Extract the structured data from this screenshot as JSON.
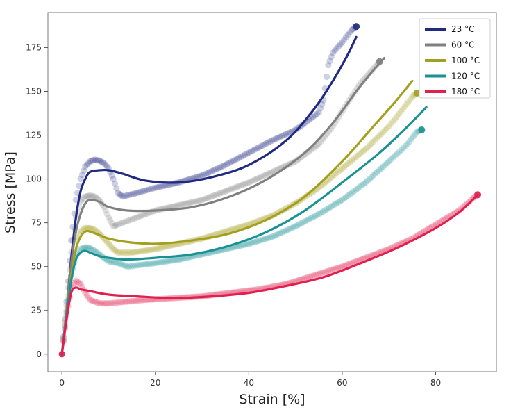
{
  "chart_data": {
    "type": "line",
    "title": "",
    "xlabel": "Strain [%]",
    "ylabel": "Stress [MPa]",
    "xlim": [
      -3,
      93
    ],
    "ylim": [
      -10,
      195
    ],
    "xticks": [
      0,
      20,
      40,
      60,
      80
    ],
    "yticks": [
      0,
      25,
      50,
      75,
      100,
      125,
      150,
      175
    ],
    "grid": false,
    "legend_position": "top-right",
    "series": [
      {
        "name": "23 °C",
        "color": "#1f2a80",
        "model": [
          [
            0,
            0
          ],
          [
            1,
            25
          ],
          [
            2,
            55
          ],
          [
            3,
            78
          ],
          [
            4,
            93
          ],
          [
            5,
            100
          ],
          [
            6,
            104
          ],
          [
            8,
            105
          ],
          [
            10,
            105
          ],
          [
            13,
            103
          ],
          [
            18,
            99
          ],
          [
            25,
            98
          ],
          [
            32,
            101
          ],
          [
            40,
            108
          ],
          [
            48,
            122
          ],
          [
            54,
            140
          ],
          [
            58,
            156
          ],
          [
            61,
            170
          ],
          [
            63,
            181
          ]
        ],
        "data": [
          [
            0,
            0
          ],
          [
            1,
            30
          ],
          [
            2,
            65
          ],
          [
            3,
            88
          ],
          [
            4,
            100
          ],
          [
            5,
            107
          ],
          [
            6,
            110
          ],
          [
            7,
            111
          ],
          [
            8,
            110.5
          ],
          [
            9,
            109
          ],
          [
            10,
            106
          ],
          [
            11,
            100
          ],
          [
            12,
            92
          ],
          [
            13,
            90
          ],
          [
            16,
            92
          ],
          [
            20,
            95
          ],
          [
            25,
            98
          ],
          [
            30,
            102
          ],
          [
            35,
            108
          ],
          [
            40,
            115
          ],
          [
            45,
            122
          ],
          [
            50,
            128
          ],
          [
            55,
            138
          ],
          [
            56,
            145
          ],
          [
            57,
            165
          ],
          [
            58,
            172
          ],
          [
            60,
            178
          ],
          [
            62,
            185
          ],
          [
            63,
            187
          ]
        ]
      },
      {
        "name": "60 °C",
        "color": "#808080",
        "model": [
          [
            0,
            0
          ],
          [
            1,
            25
          ],
          [
            2,
            52
          ],
          [
            3,
            70
          ],
          [
            4,
            80
          ],
          [
            5,
            86
          ],
          [
            6,
            88
          ],
          [
            8,
            87
          ],
          [
            10,
            84
          ],
          [
            14,
            82
          ],
          [
            20,
            82
          ],
          [
            28,
            84
          ],
          [
            36,
            90
          ],
          [
            44,
            100
          ],
          [
            52,
            115
          ],
          [
            58,
            132
          ],
          [
            63,
            150
          ],
          [
            66,
            160
          ],
          [
            69,
            169
          ]
        ],
        "data": [
          [
            0,
            0
          ],
          [
            1,
            28
          ],
          [
            2,
            58
          ],
          [
            3,
            78
          ],
          [
            4,
            87
          ],
          [
            5,
            90
          ],
          [
            6,
            90.5
          ],
          [
            7,
            90
          ],
          [
            8,
            88
          ],
          [
            9,
            84
          ],
          [
            10,
            78
          ],
          [
            11,
            73
          ],
          [
            12,
            74
          ],
          [
            16,
            78
          ],
          [
            20,
            82
          ],
          [
            25,
            85
          ],
          [
            30,
            88
          ],
          [
            35,
            93
          ],
          [
            40,
            98
          ],
          [
            45,
            104
          ],
          [
            50,
            110
          ],
          [
            53,
            116
          ],
          [
            55,
            120
          ],
          [
            58,
            130
          ],
          [
            61,
            143
          ],
          [
            64,
            155
          ],
          [
            67,
            164
          ],
          [
            68,
            167
          ]
        ]
      },
      {
        "name": "100 °C",
        "color": "#a3a01f",
        "model": [
          [
            0,
            0
          ],
          [
            1,
            22
          ],
          [
            2,
            45
          ],
          [
            3,
            60
          ],
          [
            4,
            67
          ],
          [
            5,
            70
          ],
          [
            6,
            70
          ],
          [
            8,
            68
          ],
          [
            10,
            66
          ],
          [
            14,
            64
          ],
          [
            20,
            63
          ],
          [
            28,
            65
          ],
          [
            36,
            69
          ],
          [
            44,
            77
          ],
          [
            52,
            90
          ],
          [
            60,
            110
          ],
          [
            66,
            128
          ],
          [
            71,
            143
          ],
          [
            75,
            156
          ]
        ],
        "data": [
          [
            0,
            0
          ],
          [
            1,
            25
          ],
          [
            2,
            50
          ],
          [
            3,
            65
          ],
          [
            4,
            70
          ],
          [
            5,
            72
          ],
          [
            6,
            72
          ],
          [
            7,
            71
          ],
          [
            8,
            69
          ],
          [
            9,
            66
          ],
          [
            10,
            63
          ],
          [
            11,
            60
          ],
          [
            12,
            58
          ],
          [
            15,
            58
          ],
          [
            20,
            60
          ],
          [
            25,
            63
          ],
          [
            30,
            66
          ],
          [
            35,
            70
          ],
          [
            40,
            74
          ],
          [
            45,
            79
          ],
          [
            50,
            86
          ],
          [
            55,
            95
          ],
          [
            60,
            106
          ],
          [
            65,
            117
          ],
          [
            70,
            130
          ],
          [
            73,
            140
          ],
          [
            75,
            147
          ],
          [
            76,
            149
          ]
        ]
      },
      {
        "name": "120 °C",
        "color": "#1a9294",
        "model": [
          [
            0,
            0
          ],
          [
            1,
            22
          ],
          [
            2,
            42
          ],
          [
            3,
            54
          ],
          [
            4,
            58
          ],
          [
            5,
            59
          ],
          [
            6,
            58
          ],
          [
            8,
            56
          ],
          [
            10,
            55
          ],
          [
            14,
            54
          ],
          [
            20,
            55
          ],
          [
            28,
            57
          ],
          [
            36,
            62
          ],
          [
            44,
            70
          ],
          [
            52,
            82
          ],
          [
            60,
            98
          ],
          [
            68,
            115
          ],
          [
            74,
            130
          ],
          [
            78,
            141
          ]
        ],
        "data": [
          [
            0,
            0
          ],
          [
            1,
            24
          ],
          [
            2,
            45
          ],
          [
            3,
            56
          ],
          [
            4,
            60
          ],
          [
            5,
            61
          ],
          [
            6,
            60.5
          ],
          [
            7,
            59
          ],
          [
            8,
            57
          ],
          [
            9,
            55
          ],
          [
            10,
            53
          ],
          [
            12,
            52
          ],
          [
            14,
            50
          ],
          [
            20,
            52
          ],
          [
            25,
            54
          ],
          [
            30,
            57
          ],
          [
            35,
            60
          ],
          [
            40,
            63
          ],
          [
            45,
            67
          ],
          [
            50,
            73
          ],
          [
            55,
            80
          ],
          [
            60,
            88
          ],
          [
            65,
            98
          ],
          [
            70,
            110
          ],
          [
            74,
            120
          ],
          [
            76,
            127
          ],
          [
            77,
            128
          ]
        ]
      },
      {
        "name": "180 °C",
        "color": "#e0204f",
        "model": [
          [
            0,
            0
          ],
          [
            1,
            20
          ],
          [
            2,
            35
          ],
          [
            3,
            38
          ],
          [
            4,
            37
          ],
          [
            6,
            36
          ],
          [
            10,
            34
          ],
          [
            16,
            33
          ],
          [
            24,
            32
          ],
          [
            32,
            33
          ],
          [
            40,
            35
          ],
          [
            48,
            39
          ],
          [
            56,
            44
          ],
          [
            64,
            52
          ],
          [
            72,
            61
          ],
          [
            80,
            72
          ],
          [
            85,
            81
          ],
          [
            89,
            91
          ]
        ],
        "data": [
          [
            0,
            0
          ],
          [
            1,
            22
          ],
          [
            2,
            38
          ],
          [
            3,
            42
          ],
          [
            4,
            40
          ],
          [
            5,
            35
          ],
          [
            6,
            31
          ],
          [
            8,
            29
          ],
          [
            10,
            29
          ],
          [
            14,
            30
          ],
          [
            18,
            31
          ],
          [
            24,
            32
          ],
          [
            30,
            33
          ],
          [
            36,
            35
          ],
          [
            42,
            37
          ],
          [
            48,
            40
          ],
          [
            54,
            45
          ],
          [
            60,
            50
          ],
          [
            65,
            55
          ],
          [
            70,
            60
          ],
          [
            75,
            66
          ],
          [
            80,
            74
          ],
          [
            85,
            82
          ],
          [
            88,
            89
          ],
          [
            89,
            91
          ]
        ]
      }
    ]
  }
}
